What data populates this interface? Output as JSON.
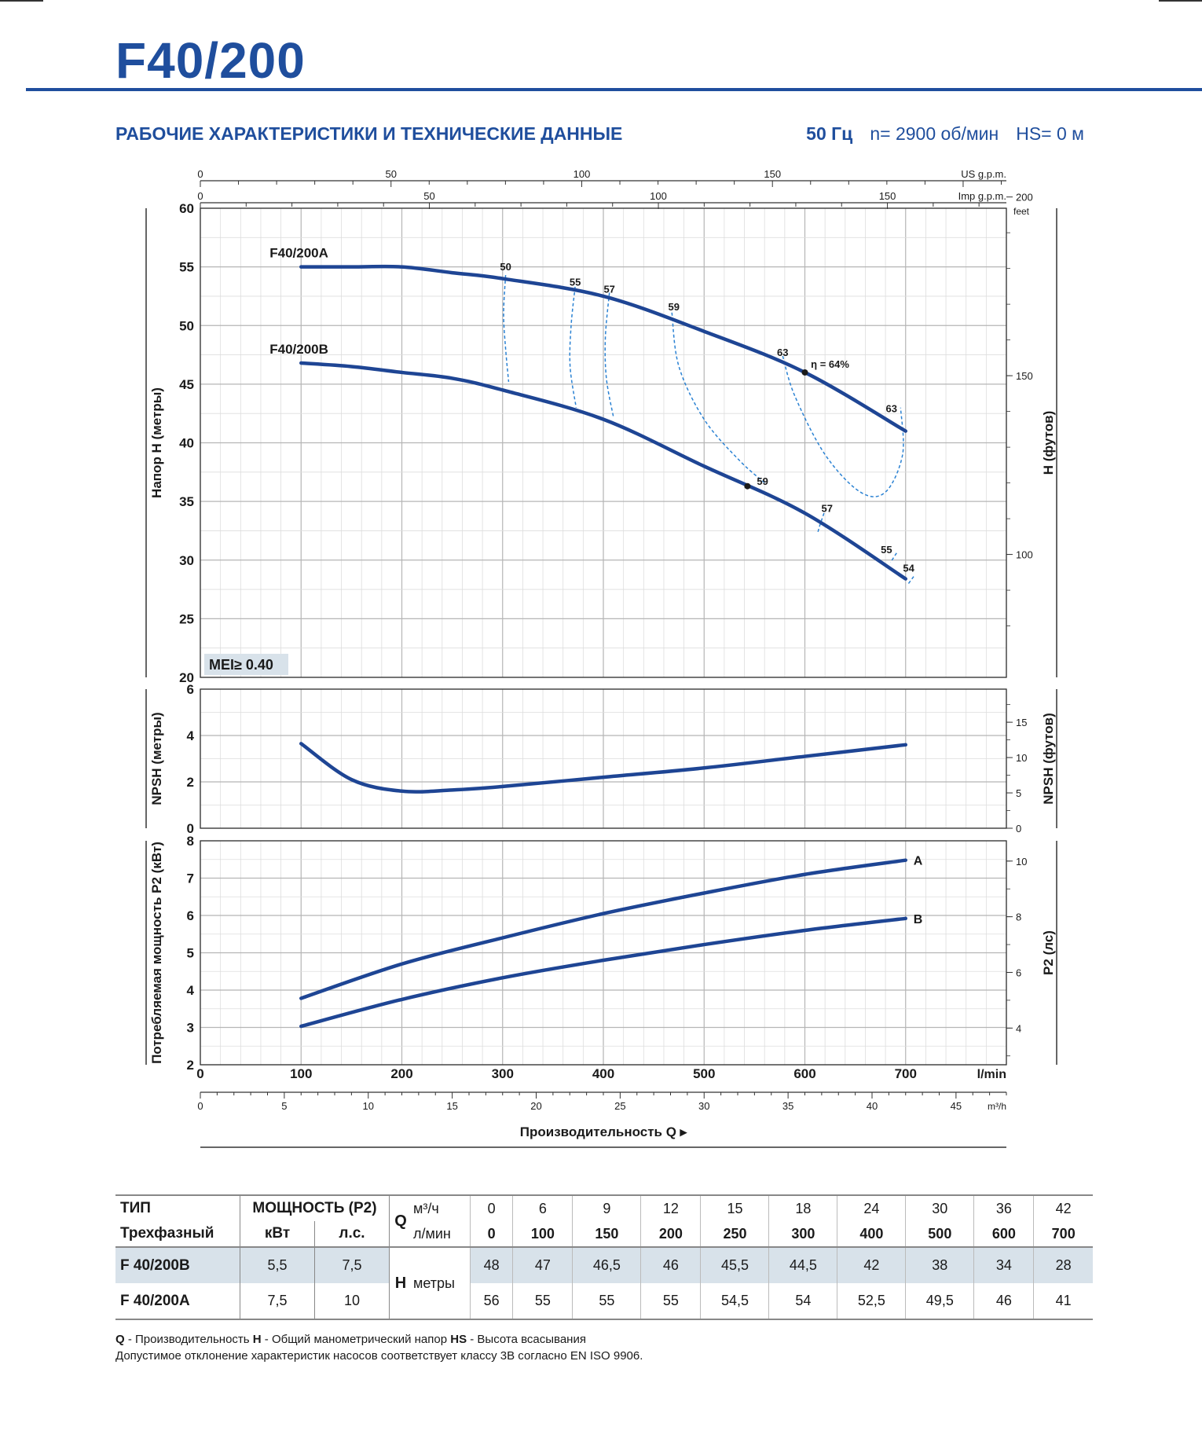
{
  "header": {
    "title": "F40/200",
    "subtitle": "РАБОЧИЕ ХАРАКТЕРИСТИКИ И ТЕХНИЧЕСКИЕ ДАННЫЕ",
    "freq": "50 Гц",
    "speed": "n= 2900 об/мин",
    "hs": "HS= 0 м"
  },
  "colors": {
    "accent": "#1f4e9d",
    "curve": "#1e4594",
    "eff": "#2b82d3",
    "grid": "#c9c9c9",
    "table_shade": "#d8e2ea"
  },
  "chart_data": [
    {
      "type": "line",
      "ylabel": "Напор H (метры)",
      "ylabel_right": "H (футов)",
      "ylim": [
        20,
        60
      ],
      "xlim": [
        0,
        800
      ],
      "yticks": [
        20,
        25,
        30,
        35,
        40,
        45,
        50,
        55,
        60
      ],
      "right_ticks": [
        {
          "v": 200,
          "label": "200"
        },
        {
          "v": 150,
          "label": "150"
        },
        {
          "v": 100,
          "label": "100"
        }
      ],
      "right_unit": "feet",
      "top_axis_us": {
        "label": "US g.p.m.",
        "ticks": [
          0,
          50,
          100,
          150
        ]
      },
      "top_axis_imp": {
        "label": "Imp g.p.m.",
        "ticks": [
          0,
          50,
          100,
          150
        ]
      },
      "mei_label": "MEI≥ 0.40",
      "series": [
        {
          "name": "F40/200A",
          "x": [
            100,
            150,
            200,
            250,
            300,
            400,
            500,
            600,
            700
          ],
          "values": [
            55,
            55,
            55,
            54.5,
            54,
            52.5,
            49.5,
            46,
            41
          ]
        },
        {
          "name": "F40/200B",
          "x": [
            100,
            150,
            200,
            250,
            300,
            400,
            500,
            600,
            700
          ],
          "values": [
            46.8,
            46.5,
            46,
            45.5,
            44.5,
            42,
            38,
            34,
            28.4
          ]
        }
      ],
      "efficiency_labels": [
        {
          "text": "50",
          "x": 303,
          "y": 54.7
        },
        {
          "text": "55",
          "x": 372,
          "y": 53.4
        },
        {
          "text": "57",
          "x": 406,
          "y": 52.8
        },
        {
          "text": "59",
          "x": 470,
          "y": 51.3
        },
        {
          "text": "63",
          "x": 578,
          "y": 47.4
        },
        {
          "text": "η = 64%",
          "x": 625,
          "y": 46.4
        },
        {
          "text": "63",
          "x": 686,
          "y": 42.6
        },
        {
          "text": "59",
          "x": 558,
          "y": 36.4
        },
        {
          "text": "57",
          "x": 622,
          "y": 34.1
        },
        {
          "text": "55",
          "x": 681,
          "y": 30.6
        },
        {
          "text": "54",
          "x": 703,
          "y": 29.0
        }
      ]
    },
    {
      "type": "line",
      "ylabel": "NPSH (метры)",
      "ylabel_right": "NPSH (футов)",
      "ylim": [
        0,
        6
      ],
      "yticks": [
        0,
        2,
        4,
        6
      ],
      "right_ticks": [
        {
          "v": 0,
          "label": "0"
        },
        {
          "v": 5,
          "label": "5"
        },
        {
          "v": 10,
          "label": "10"
        },
        {
          "v": 15,
          "label": "15"
        }
      ],
      "series": [
        {
          "name": "",
          "x": [
            100,
            150,
            200,
            250,
            300,
            400,
            500,
            600,
            700
          ],
          "values": [
            3.65,
            2.1,
            1.6,
            1.65,
            1.8,
            2.2,
            2.6,
            3.1,
            3.6
          ]
        }
      ]
    },
    {
      "type": "line",
      "ylabel": "Потребляемая мощность P2 (кВт)",
      "ylabel_right": "P2 (лс)",
      "ylim": [
        2,
        8
      ],
      "yticks": [
        2,
        3,
        4,
        5,
        6,
        7,
        8
      ],
      "right_ticks": [
        {
          "v": 4,
          "label": "4"
        },
        {
          "v": 6,
          "label": "6"
        },
        {
          "v": 8,
          "label": "8"
        },
        {
          "v": 10,
          "label": "10"
        }
      ],
      "xticks": [
        0,
        100,
        200,
        300,
        400,
        500,
        600,
        700
      ],
      "xunit": "l/min",
      "m3h_ticks": [
        0,
        5,
        10,
        15,
        20,
        25,
        30,
        35,
        40,
        45
      ],
      "m3h_unit": "m³/h",
      "xlabel": "Производительность Q",
      "series": [
        {
          "name": "A",
          "x": [
            100,
            200,
            300,
            400,
            500,
            600,
            700
          ],
          "values": [
            3.78,
            4.7,
            5.4,
            6.05,
            6.6,
            7.1,
            7.48
          ]
        },
        {
          "name": "B",
          "x": [
            100,
            200,
            300,
            400,
            500,
            600,
            700
          ],
          "values": [
            3.03,
            3.75,
            4.33,
            4.8,
            5.22,
            5.6,
            5.92
          ]
        }
      ]
    }
  ],
  "table": {
    "h_type": "ТИП",
    "h_three_phase": "Трехфазный",
    "h_power": "МОЩНОСТЬ (P2)",
    "h_kw": "кВт",
    "h_hp": "л.с.",
    "h_q": "Q",
    "h_m3h": "м³/ч",
    "h_lmin": "л/мин",
    "h_h": "H",
    "h_meters": "метры",
    "m3h": [
      "0",
      "6",
      "9",
      "12",
      "15",
      "18",
      "24",
      "30",
      "36",
      "42"
    ],
    "lmin": [
      "0",
      "100",
      "150",
      "200",
      "250",
      "300",
      "400",
      "500",
      "600",
      "700"
    ],
    "rows": [
      {
        "model": "F 40/200B",
        "kw": "5,5",
        "hp": "7,5",
        "h": [
          "48",
          "47",
          "46,5",
          "46",
          "45,5",
          "44,5",
          "42",
          "38",
          "34",
          "28"
        ]
      },
      {
        "model": "F 40/200A",
        "kw": "7,5",
        "hp": "10",
        "h": [
          "56",
          "55",
          "55",
          "55",
          "54,5",
          "54",
          "52,5",
          "49,5",
          "46",
          "41"
        ]
      }
    ]
  },
  "footnotes": {
    "q_key": "Q",
    "q_text": " - Производительность   ",
    "h_key": "H",
    "h_text": " - Общий манометрический напор   ",
    "hs_key": "HS",
    "hs_text": " - Высота всасывания",
    "line2": "Допустимое отклонение характеристик насосов соответствует классу 3B согласно EN ISO 9906."
  }
}
